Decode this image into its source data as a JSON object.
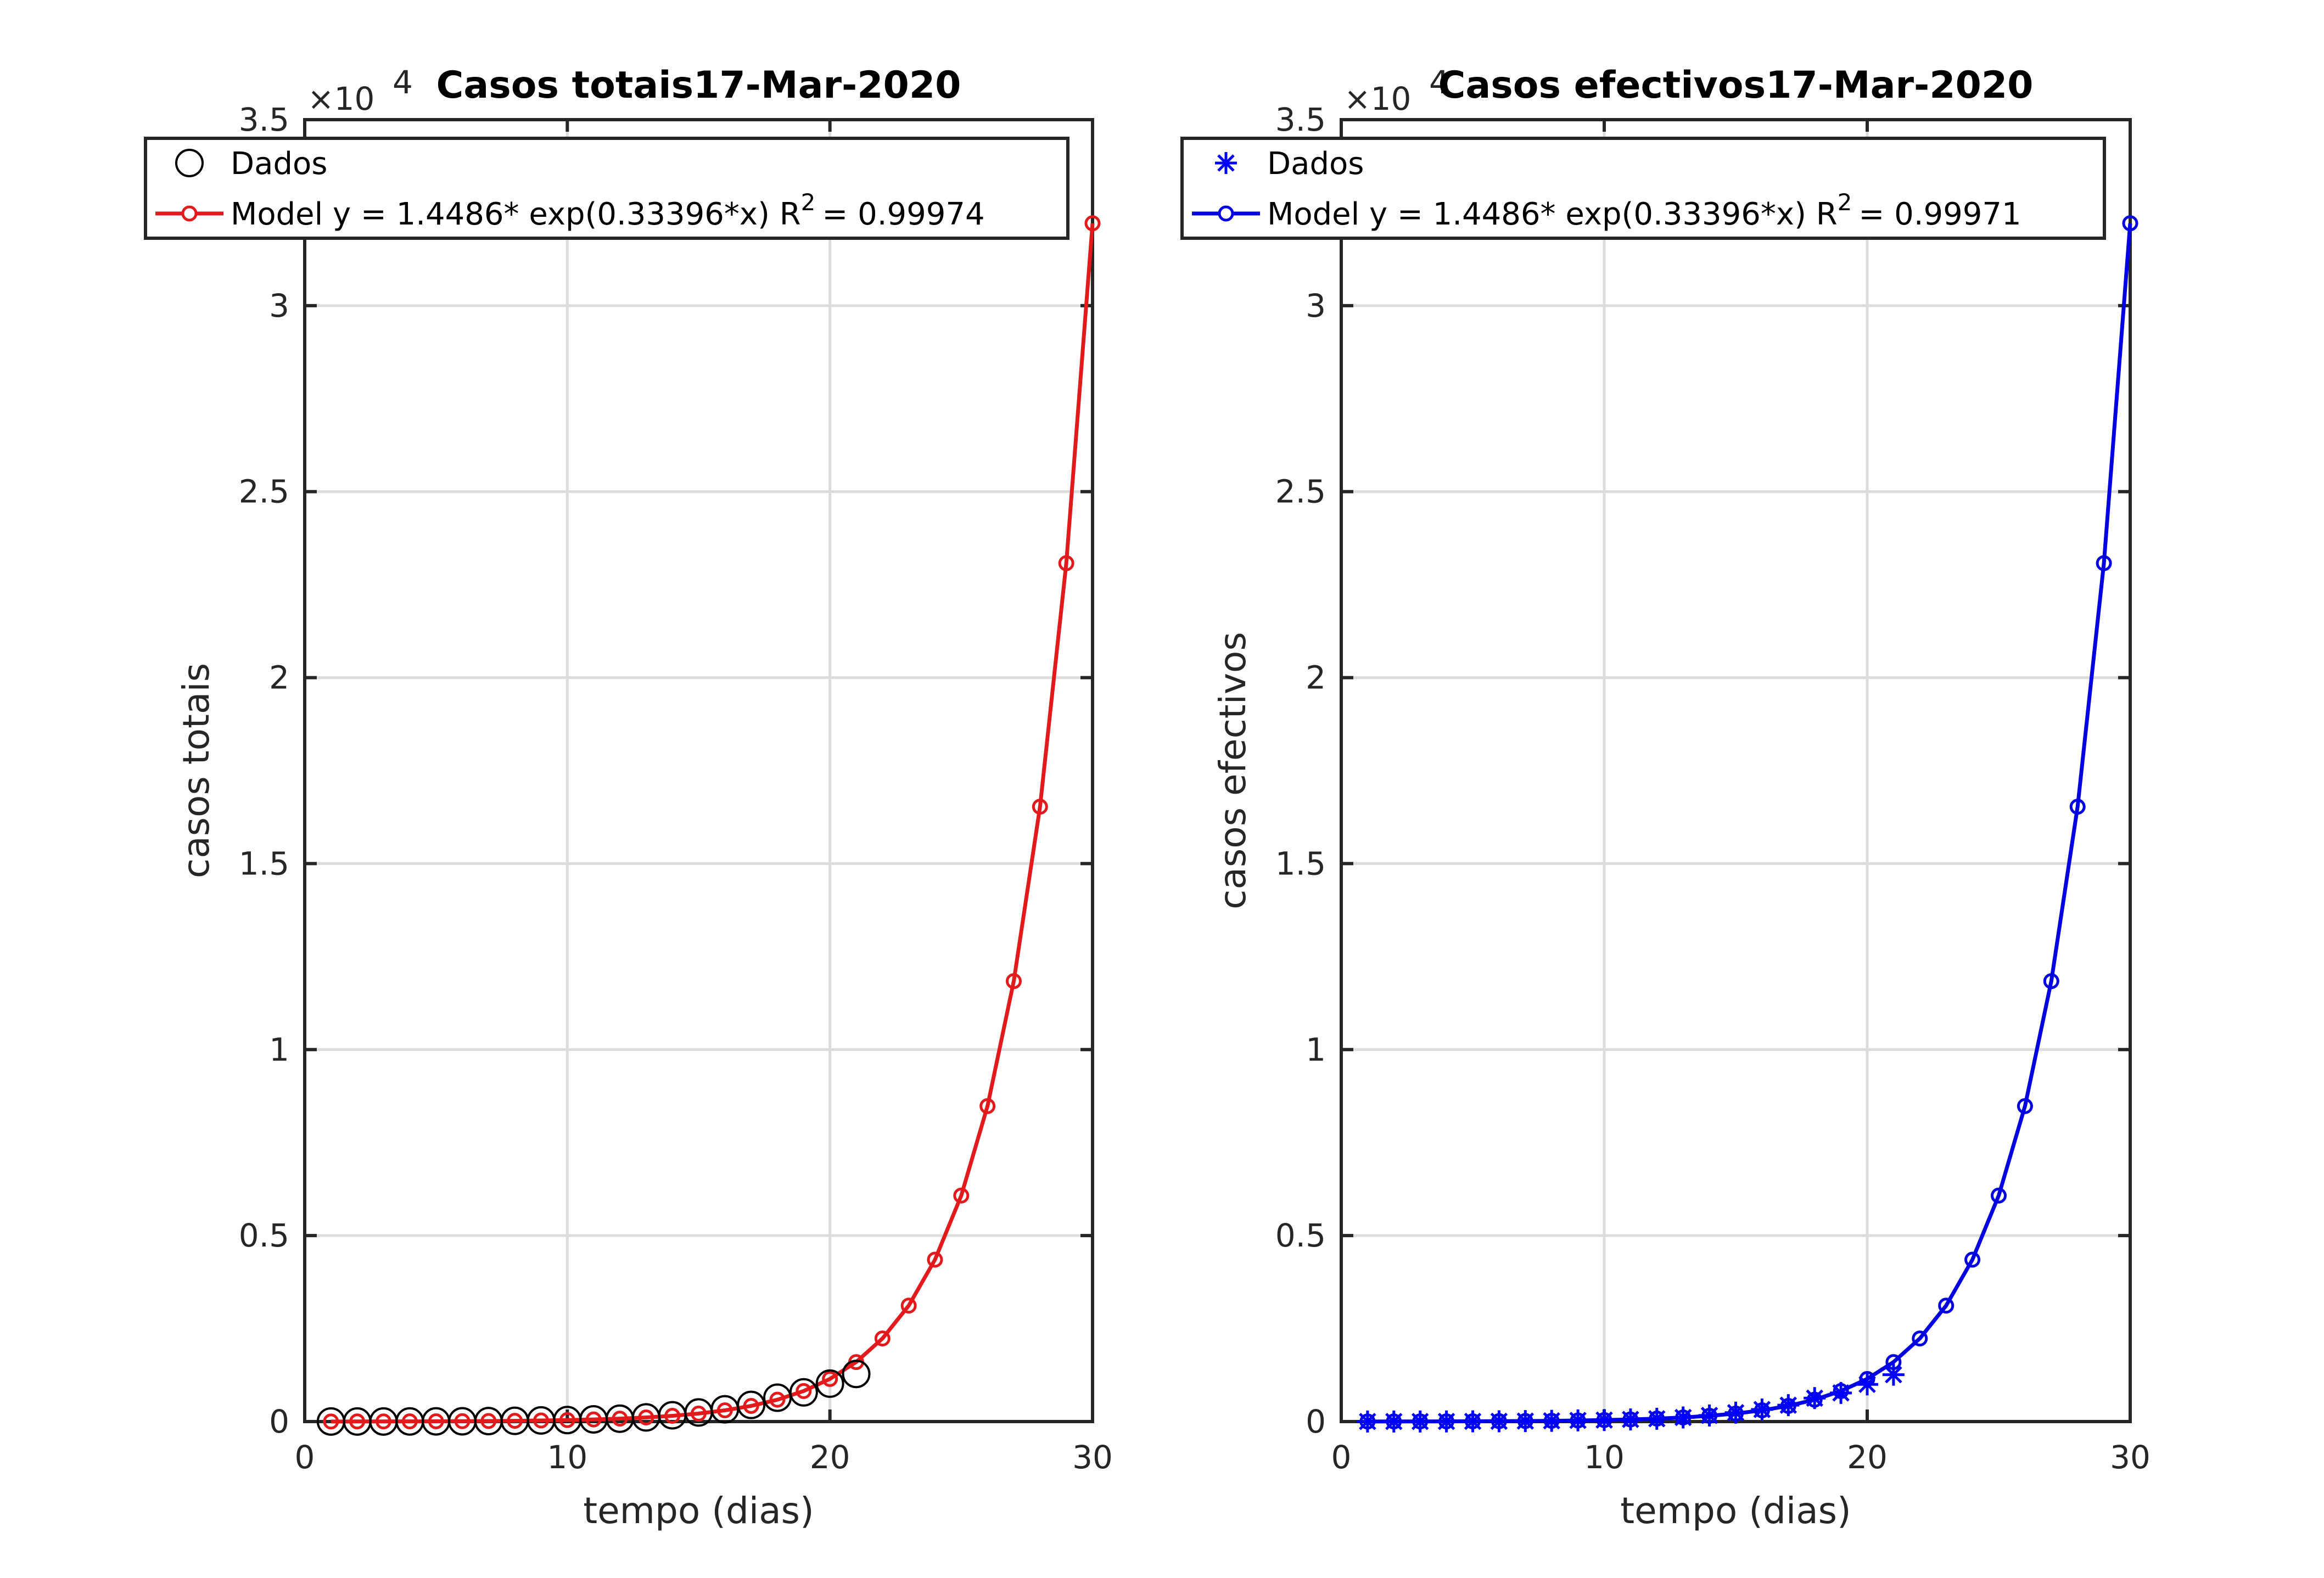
{
  "chart_data": [
    {
      "type": "line",
      "title": "Casos totais17-Mar-2020",
      "xlabel": "tempo (dias)",
      "ylabel": "casos totais",
      "xlim": [
        0,
        30
      ],
      "ylim": [
        0,
        35000
      ],
      "x_ticks": [
        "0",
        "10",
        "20",
        "30"
      ],
      "y_ticks": [
        "0",
        "0.5",
        "1",
        "1.5",
        "2",
        "2.5",
        "3",
        "3.5"
      ],
      "y_exponent": "4",
      "grid": true,
      "legend_position": "top",
      "color_data": "#000000",
      "color_model": "#e31a1c",
      "data_marker": "circle",
      "series": [
        {
          "name": "Dados",
          "x": [
            1,
            2,
            3,
            4,
            5,
            6,
            7,
            8,
            9,
            10,
            11,
            12,
            13,
            14,
            15,
            16,
            17,
            18,
            19,
            20,
            21
          ],
          "y": [
            2,
            2,
            2,
            4,
            6,
            8,
            13,
            20,
            31,
            41,
            59,
            78,
            112,
            169,
            245,
            331,
            448,
            642,
            785,
            1020,
            1280
          ]
        },
        {
          "name": "Model y = 1.4486* exp(0.33396*x)  R",
          "r2_value": "= 0.99974",
          "x": [
            1,
            2,
            3,
            4,
            5,
            6,
            7,
            8,
            9,
            10,
            11,
            12,
            13,
            14,
            15,
            16,
            17,
            18,
            19,
            20,
            21,
            22,
            23,
            24,
            25,
            26,
            27,
            28,
            29,
            30
          ],
          "y": [
            2,
            3,
            4,
            5,
            8,
            11,
            15,
            21,
            29,
            41,
            57,
            80,
            111,
            155,
            216,
            302,
            421,
            588,
            821,
            1146,
            1600,
            2233,
            3117,
            4352,
            6075,
            8481,
            11840,
            16529,
            23076,
            32214
          ]
        }
      ]
    },
    {
      "type": "line",
      "title": "Casos efectivos17-Mar-2020",
      "xlabel": "tempo (dias)",
      "ylabel": "casos efectivos",
      "xlim": [
        0,
        30
      ],
      "ylim": [
        0,
        35000
      ],
      "x_ticks": [
        "0",
        "10",
        "20",
        "30"
      ],
      "y_ticks": [
        "0",
        "0.5",
        "1",
        "1.5",
        "2",
        "2.5",
        "3",
        "3.5"
      ],
      "y_exponent": "4",
      "grid": true,
      "legend_position": "top",
      "color_data": "#0000ff",
      "color_model": "#0000e0",
      "data_marker": "asterisk",
      "series": [
        {
          "name": "Dados",
          "x": [
            1,
            2,
            3,
            4,
            5,
            6,
            7,
            8,
            9,
            10,
            11,
            12,
            13,
            14,
            15,
            16,
            17,
            18,
            19,
            20,
            21
          ],
          "y": [
            2,
            2,
            2,
            4,
            6,
            8,
            13,
            20,
            31,
            40,
            58,
            76,
            110,
            165,
            240,
            325,
            440,
            630,
            770,
            1000,
            1260
          ]
        },
        {
          "name": "Model y = 1.4486* exp(0.33396*x)  R",
          "r2_value": "= 0.99971",
          "x": [
            1,
            2,
            3,
            4,
            5,
            6,
            7,
            8,
            9,
            10,
            11,
            12,
            13,
            14,
            15,
            16,
            17,
            18,
            19,
            20,
            21,
            22,
            23,
            24,
            25,
            26,
            27,
            28,
            29,
            30
          ],
          "y": [
            2,
            3,
            4,
            5,
            8,
            11,
            15,
            21,
            29,
            41,
            57,
            80,
            111,
            155,
            216,
            302,
            421,
            588,
            821,
            1146,
            1600,
            2233,
            3117,
            4352,
            6075,
            8481,
            11840,
            16529,
            23076,
            32214
          ]
        }
      ]
    }
  ]
}
